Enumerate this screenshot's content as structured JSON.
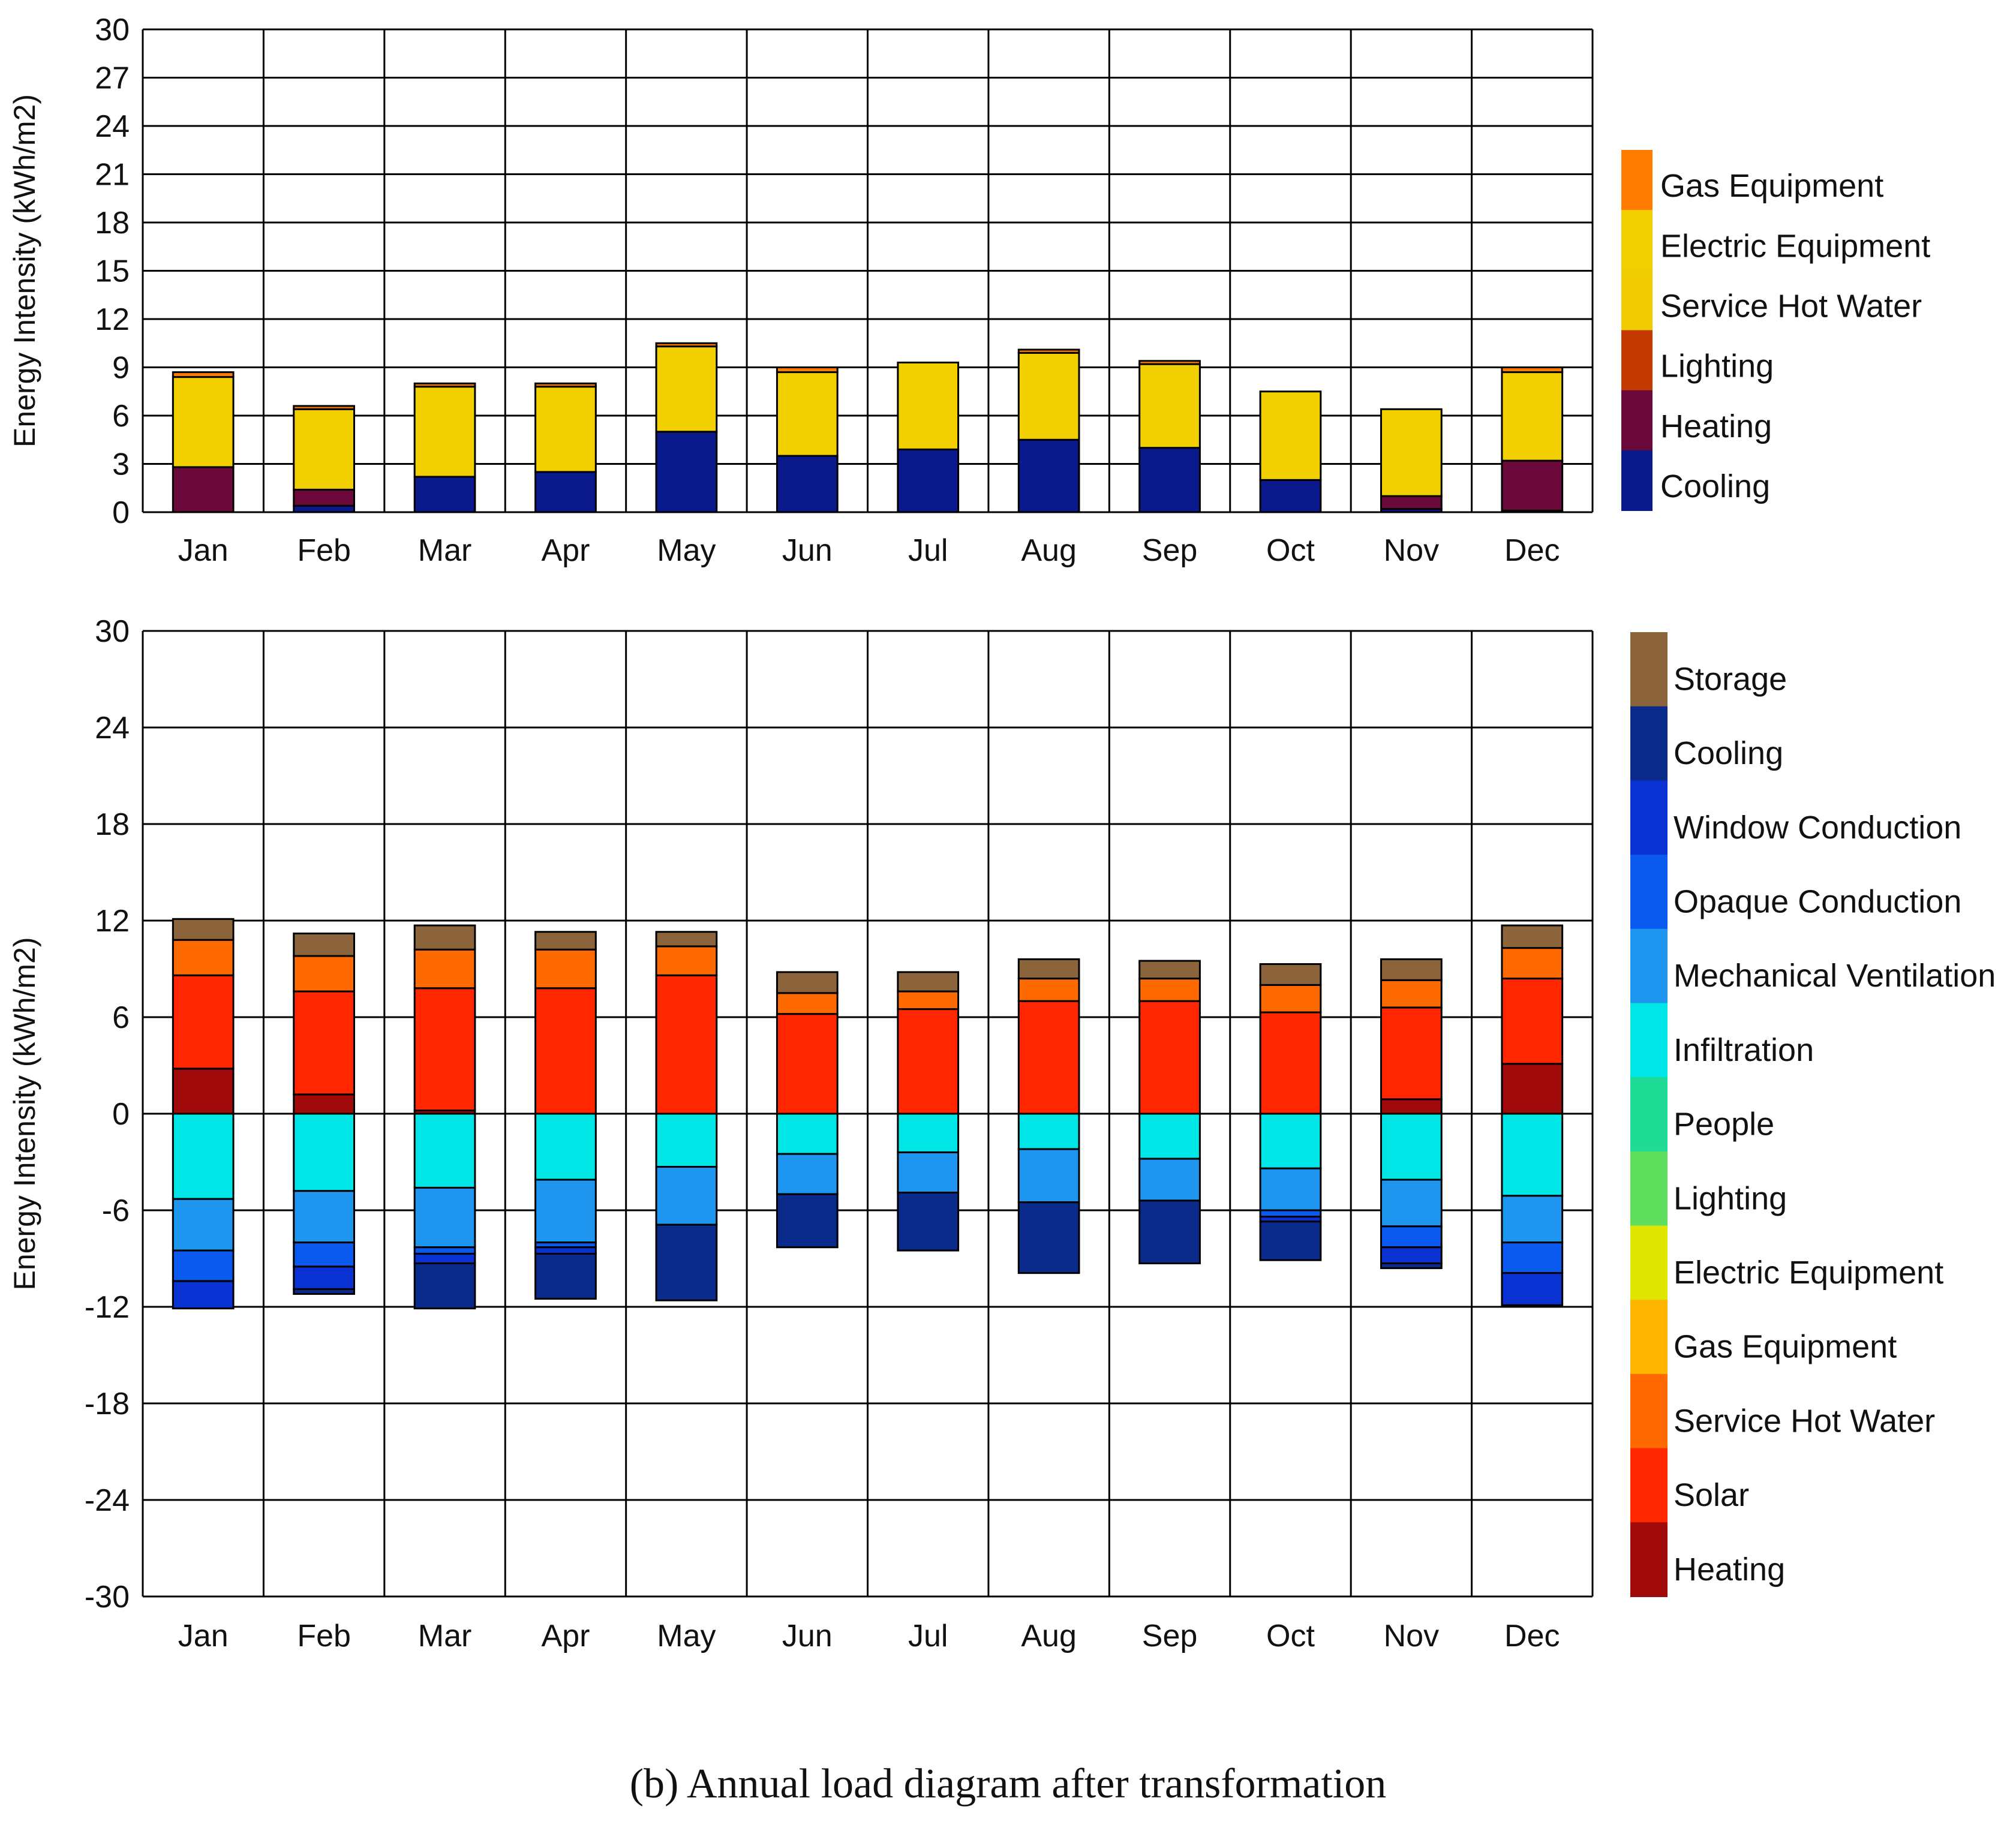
{
  "caption": "(b) Annual load diagram after transformation",
  "chart_data": [
    {
      "type": "bar",
      "stacked": true,
      "title": "",
      "xlabel": "",
      "ylabel": "Energy Intensity (kWh/m2)",
      "ylim": [
        0,
        30
      ],
      "yticks": [
        0,
        3,
        6,
        9,
        12,
        15,
        18,
        21,
        24,
        27,
        30
      ],
      "grid": true,
      "legend_position": "right",
      "categories": [
        "Jan",
        "Feb",
        "Mar",
        "Apr",
        "May",
        "Jun",
        "Jul",
        "Aug",
        "Sep",
        "Oct",
        "Nov",
        "Dec"
      ],
      "series": [
        {
          "name": "Cooling",
          "color": "#0a1a8c",
          "values": [
            0.0,
            0.4,
            2.2,
            2.5,
            5.0,
            3.5,
            3.9,
            4.5,
            4.0,
            2.0,
            0.2,
            0.1
          ]
        },
        {
          "name": "Heating",
          "color": "#6b0a3a",
          "values": [
            2.8,
            1.0,
            0.0,
            0.0,
            0.0,
            0.0,
            0.0,
            0.0,
            0.0,
            0.0,
            0.8,
            3.1
          ]
        },
        {
          "name": "Lighting",
          "color": "#c43a00",
          "values": [
            0,
            0,
            0,
            0,
            0,
            0,
            0,
            0,
            0,
            0,
            0,
            0
          ]
        },
        {
          "name": "Service Hot Water",
          "color": "#f0cc00",
          "values": [
            0,
            0,
            0,
            0,
            0,
            0,
            0,
            0,
            0,
            0,
            0,
            0
          ]
        },
        {
          "name": "Electric Equipment",
          "color": "#f2d000",
          "values": [
            5.6,
            5.0,
            5.6,
            5.3,
            5.3,
            5.2,
            5.4,
            5.4,
            5.2,
            5.5,
            5.4,
            5.5
          ]
        },
        {
          "name": "Gas Equipment",
          "color": "#ff7c00",
          "values": [
            0.3,
            0.2,
            0.2,
            0.2,
            0.2,
            0.3,
            0.0,
            0.2,
            0.2,
            0.0,
            0.0,
            0.3
          ]
        }
      ],
      "legend": [
        "Gas Equipment",
        "Electric Equipment",
        "Service Hot Water",
        "Lighting",
        "Heating",
        "Cooling"
      ]
    },
    {
      "type": "bar",
      "stacked": true,
      "diverging": true,
      "title": "",
      "xlabel": "",
      "ylabel": "Energy Intensity (kWh/m2)",
      "ylim": [
        -30,
        30
      ],
      "yticks": [
        -30,
        -24,
        -18,
        -12,
        -6,
        0,
        6,
        12,
        18,
        24,
        30
      ],
      "grid": true,
      "legend_position": "right",
      "categories": [
        "Jan",
        "Feb",
        "Mar",
        "Apr",
        "May",
        "Jun",
        "Jul",
        "Aug",
        "Sep",
        "Oct",
        "Nov",
        "Dec"
      ],
      "series": [
        {
          "name": "Heating",
          "color": "#a00a0a",
          "values": [
            2.8,
            1.2,
            0.2,
            0,
            0,
            0,
            0,
            0,
            0,
            0,
            0.9,
            3.1
          ]
        },
        {
          "name": "Solar",
          "color": "#ff2600",
          "values": [
            5.8,
            6.4,
            7.6,
            7.8,
            8.6,
            6.2,
            6.5,
            7.0,
            7.0,
            6.3,
            5.7,
            5.3
          ]
        },
        {
          "name": "Service Hot Water",
          "color": "#ff6a00",
          "values": [
            2.2,
            2.2,
            2.4,
            2.4,
            1.8,
            1.3,
            1.1,
            1.4,
            1.4,
            1.7,
            1.7,
            1.9
          ]
        },
        {
          "name": "Gas Equipment",
          "color": "#ffb400",
          "values": [
            0,
            0,
            0,
            0,
            0,
            0,
            0,
            0,
            0,
            0,
            0,
            0
          ]
        },
        {
          "name": "Electric Equipment",
          "color": "#e0e600",
          "values": [
            0,
            0,
            0,
            0,
            0,
            0,
            0,
            0,
            0,
            0,
            0,
            0
          ]
        },
        {
          "name": "Lighting",
          "color": "#5ee05e",
          "values": [
            0,
            0,
            0,
            0,
            0,
            0,
            0,
            0,
            0,
            0,
            0,
            0
          ]
        },
        {
          "name": "People",
          "color": "#1edc96",
          "values": [
            0,
            0,
            0,
            0,
            0,
            0,
            0,
            0,
            0,
            0,
            0,
            0
          ]
        },
        {
          "name": "Infiltration",
          "color": "#00e6e6",
          "values": [
            -5.3,
            -4.8,
            -4.6,
            -4.1,
            -3.3,
            -2.5,
            -2.4,
            -2.2,
            -2.8,
            -3.4,
            -4.1,
            -5.1
          ]
        },
        {
          "name": "Mechanical Ventilation",
          "color": "#1e96f0",
          "values": [
            -3.2,
            -3.2,
            -3.7,
            -3.9,
            -3.6,
            -2.5,
            -2.5,
            -3.3,
            -2.6,
            -2.6,
            -2.9,
            -2.9
          ]
        },
        {
          "name": "Opaque Conduction",
          "color": "#0a5af0",
          "values": [
            -1.9,
            -1.5,
            -0.4,
            -0.3,
            0,
            0,
            0,
            0,
            0,
            -0.4,
            -1.3,
            -1.9
          ]
        },
        {
          "name": "Window Conduction",
          "color": "#0a32d2",
          "values": [
            -1.7,
            -1.4,
            -0.6,
            -0.4,
            0,
            0,
            0,
            0,
            0,
            -0.3,
            -1.0,
            -2.0
          ]
        },
        {
          "name": "Cooling",
          "color": "#0a2a8c",
          "values": [
            0,
            -0.3,
            -2.8,
            -2.8,
            -4.7,
            -3.3,
            -3.6,
            -4.4,
            -3.9,
            -2.4,
            -0.3,
            0
          ]
        },
        {
          "name": "Storage",
          "color": "#8c643c",
          "values": [
            1.3,
            1.4,
            1.5,
            1.1,
            0.9,
            1.3,
            1.2,
            1.2,
            1.1,
            1.3,
            1.3,
            1.4
          ]
        }
      ],
      "legend": [
        "Storage",
        "Cooling",
        "Window Conduction",
        "Opaque Conduction",
        "Mechanical Ventilation",
        "Infiltration",
        "People",
        "Lighting",
        "Electric Equipment",
        "Gas Equipment",
        "Service Hot Water",
        "Solar",
        "Heating"
      ]
    }
  ]
}
